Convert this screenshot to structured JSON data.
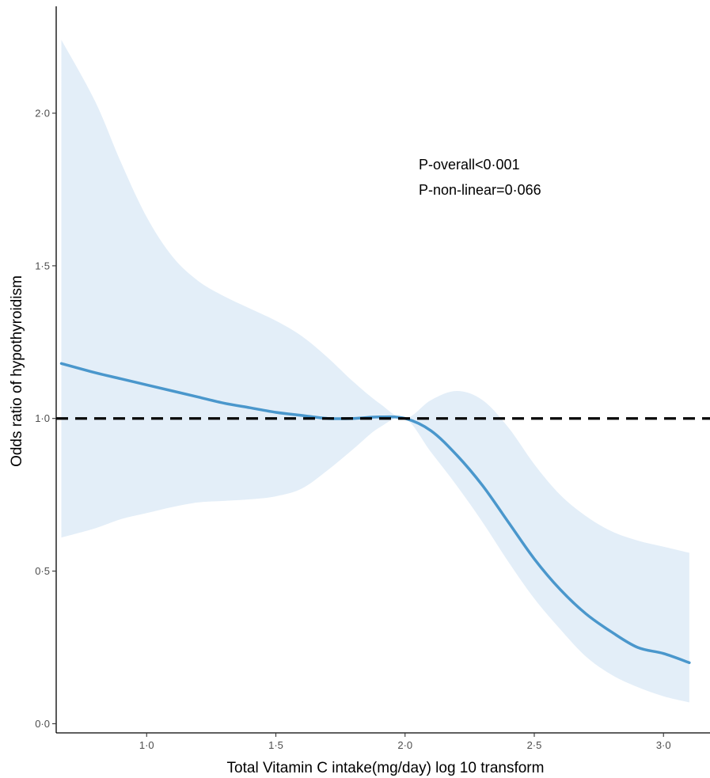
{
  "chart_data": {
    "type": "line",
    "xlabel": "Total Vitamin C intake(mg/day) log 10 transform",
    "ylabel": "Odds ratio of hypothyroidism",
    "xlim": [
      0.65,
      3.18
    ],
    "ylim": [
      -0.03,
      2.35
    ],
    "x_ticks": [
      1.0,
      1.5,
      2.0,
      2.5,
      3.0
    ],
    "x_tick_labels": [
      "1·0",
      "1·5",
      "2·0",
      "2·5",
      "3·0"
    ],
    "y_ticks": [
      0.0,
      0.5,
      1.0,
      1.5,
      2.0
    ],
    "y_tick_labels": [
      "0·0",
      "0·5",
      "1·0",
      "1·5",
      "2·0"
    ],
    "grid": false,
    "reference_line": {
      "y": 1.0,
      "style": "dashed",
      "color": "#000000"
    },
    "series": [
      {
        "x": [
          0.67,
          0.8,
          0.9,
          1.0,
          1.1,
          1.2,
          1.3,
          1.4,
          1.5,
          1.6,
          1.7,
          1.8,
          1.9,
          2.0,
          2.1,
          2.2,
          2.3,
          2.4,
          2.5,
          2.6,
          2.7,
          2.8,
          2.9,
          3.0,
          3.1
        ],
        "y": [
          1.18,
          1.15,
          1.13,
          1.11,
          1.09,
          1.07,
          1.05,
          1.035,
          1.02,
          1.01,
          1.0,
          1.0,
          1.005,
          1.0,
          0.96,
          0.88,
          0.78,
          0.66,
          0.54,
          0.44,
          0.36,
          0.3,
          0.25,
          0.23,
          0.2
        ],
        "lower": [
          0.61,
          0.64,
          0.67,
          0.69,
          0.71,
          0.725,
          0.73,
          0.735,
          0.745,
          0.77,
          0.83,
          0.9,
          0.97,
          1.0,
          0.89,
          0.78,
          0.66,
          0.53,
          0.41,
          0.31,
          0.22,
          0.16,
          0.12,
          0.09,
          0.07
        ],
        "upper": [
          2.24,
          2.04,
          1.84,
          1.66,
          1.53,
          1.45,
          1.4,
          1.36,
          1.32,
          1.27,
          1.2,
          1.12,
          1.05,
          1.0,
          1.06,
          1.09,
          1.06,
          0.97,
          0.85,
          0.75,
          0.68,
          0.63,
          0.6,
          0.58,
          0.56
        ],
        "color": "#4a97cc",
        "band_color": "#e3eef8"
      }
    ],
    "annotations": [
      "P-overall<0·001",
      "P-non-linear=0·066"
    ]
  }
}
